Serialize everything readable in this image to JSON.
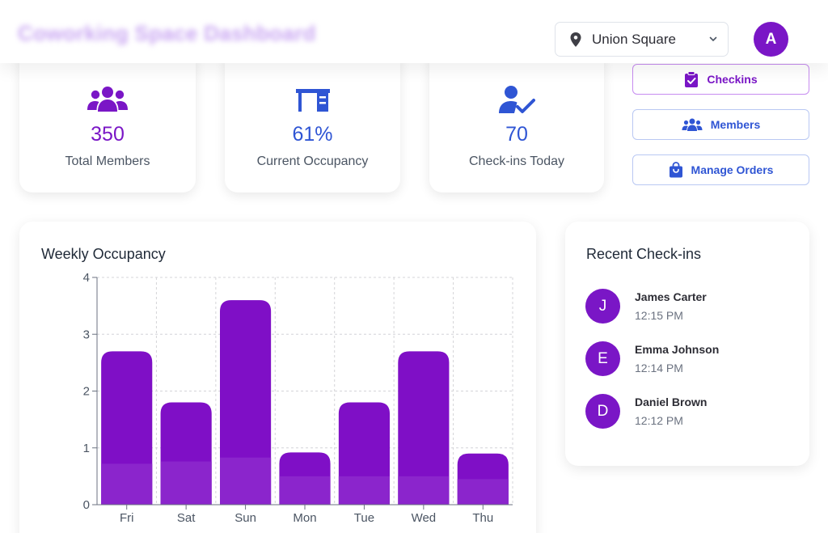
{
  "header": {
    "title": "Coworking Space Dashboard",
    "location": "Union Square",
    "avatar_initial": "A"
  },
  "stats": [
    {
      "value": "350",
      "label": "Total Members",
      "icon": "users-icon",
      "color": "#7a16c6"
    },
    {
      "value": "61%",
      "label": "Current Occupancy",
      "icon": "desk-icon",
      "color": "#2f55d4"
    },
    {
      "value": "70",
      "label": "Check-ins Today",
      "icon": "user-check-icon",
      "color": "#2f55d4"
    }
  ],
  "actions": {
    "checkins": "Checkins",
    "members": "Members",
    "orders": "Manage Orders"
  },
  "chart": {
    "title": "Weekly Occupancy"
  },
  "chart_data": {
    "type": "bar",
    "stacked": true,
    "categories": [
      "Fri",
      "Sat",
      "Sun",
      "Mon",
      "Tue",
      "Wed",
      "Thu"
    ],
    "series": [
      {
        "values": [
          0.72,
          0.76,
          0.83,
          0.5,
          0.5,
          0.5,
          0.45
        ],
        "color": "#8b25cc"
      },
      {
        "values": [
          1.98,
          1.04,
          2.77,
          0.42,
          1.3,
          2.2,
          0.45
        ],
        "color": "#7f0fc6"
      }
    ],
    "ylim": [
      0,
      4
    ],
    "yticks": [
      "0",
      "1",
      "2",
      "3",
      "4"
    ],
    "grid": true,
    "xlabel": "",
    "ylabel": ""
  },
  "recent": {
    "title": "Recent Check-ins",
    "items": [
      {
        "initial": "J",
        "name": "James Carter",
        "time": "12:15 PM"
      },
      {
        "initial": "E",
        "name": "Emma Johnson",
        "time": "12:14 PM"
      },
      {
        "initial": "D",
        "name": "Daniel Brown",
        "time": "12:12 PM"
      }
    ]
  },
  "colors": {
    "accent_purple": "#7a16c6",
    "accent_blue": "#2f55d4"
  }
}
